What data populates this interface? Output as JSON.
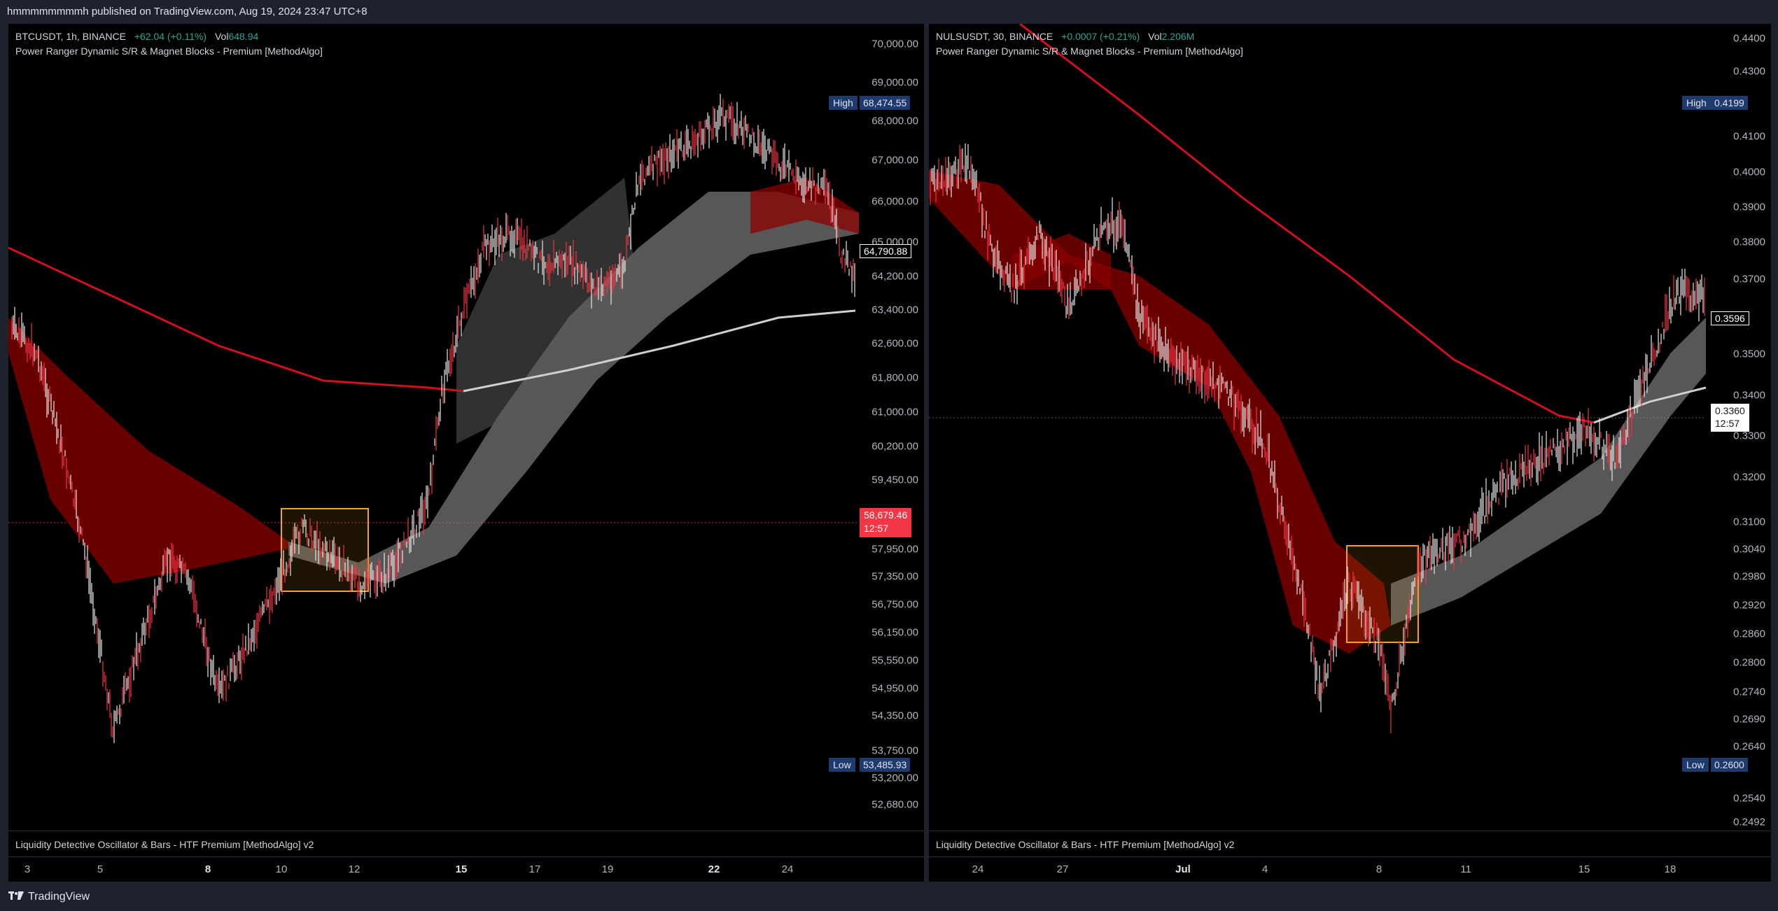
{
  "topbar": {
    "text": "hmmmmmmmmh published on TradingView.com, Aug 19, 2024 23:47 UTC+8"
  },
  "footer": {
    "brand": "TradingView",
    "logo_icon": "tradingview-logo-icon"
  },
  "colors": {
    "up": "#26a69a",
    "down": "#f23645",
    "band_red": "#8b0000",
    "band_gray": "#9e9e9e",
    "box": "#f7a21b",
    "ema": "#d10f1f"
  },
  "left": {
    "symbol": "BTCUSDT, 1h, BINANCE",
    "change": "+62.04 (+0.11%)",
    "vol_label": "Vol",
    "vol_value": "648.94",
    "indicator": "Power Ranger Dynamic S/R & Magnet Blocks - Premium [MethodAlgo]",
    "oscillator": "Liquidity Detective Oscillator & Bars - HTF Premium [MethodAlgo] v2",
    "price_labels": [
      "70,000.00",
      "69,000.00",
      "68,000.00",
      "67,000.00",
      "66,000.00",
      "65,000.00",
      "64,200.00",
      "63,400.00",
      "62,600.00",
      "61,800.00",
      "61,000.00",
      "60,200.00",
      "59,450.00",
      "57,950.00",
      "57,350.00",
      "56,750.00",
      "56,150.00",
      "55,550.00",
      "54,950.00",
      "54,350.00",
      "53,750.00",
      "53,200.00",
      "52,680.00"
    ],
    "high_label": "High",
    "high_value": "68,474.55",
    "low_label": "Low",
    "low_value": "53,485.93",
    "current_price": "64,790.88",
    "crosshair_price": "58,679.46",
    "countdown": "12:57",
    "time_ticks": [
      {
        "t": "3",
        "b": false
      },
      {
        "t": "5",
        "b": false
      },
      {
        "t": "8",
        "b": true
      },
      {
        "t": "10",
        "b": false
      },
      {
        "t": "12",
        "b": false
      },
      {
        "t": "15",
        "b": true
      },
      {
        "t": "17",
        "b": false
      },
      {
        "t": "19",
        "b": false
      },
      {
        "t": "22",
        "b": true
      },
      {
        "t": "24",
        "b": false
      }
    ]
  },
  "right": {
    "symbol": "NULSUSDT, 30, BINANCE",
    "change": "+0.0007 (+0.21%)",
    "vol_label": "Vol",
    "vol_value": "2.206M",
    "indicator": "Power Ranger Dynamic S/R & Magnet Blocks - Premium [MethodAlgo]",
    "oscillator": "Liquidity Detective Oscillator & Bars - HTF Premium [MethodAlgo] v2",
    "price_labels": [
      "0.4400",
      "0.4300",
      "0.4100",
      "0.4000",
      "0.3900",
      "0.3800",
      "0.3700",
      "0.3500",
      "0.3400",
      "0.3300",
      "0.3200",
      "0.3100",
      "0.3040",
      "0.2980",
      "0.2920",
      "0.2860",
      "0.2800",
      "0.2740",
      "0.2690",
      "0.2640",
      "0.2540",
      "0.2492"
    ],
    "high_label": "High",
    "high_value": "0.4199",
    "low_label": "Low",
    "low_value": "0.2600",
    "current_price": "0.3596",
    "crosshair_price": "0.3360",
    "countdown": "12:57",
    "time_ticks": [
      {
        "t": "24",
        "b": false
      },
      {
        "t": "27",
        "b": false
      },
      {
        "t": "Jul",
        "b": true
      },
      {
        "t": "4",
        "b": false
      },
      {
        "t": "8",
        "b": false
      },
      {
        "t": "11",
        "b": false
      },
      {
        "t": "15",
        "b": false
      },
      {
        "t": "18",
        "b": false
      }
    ]
  }
}
